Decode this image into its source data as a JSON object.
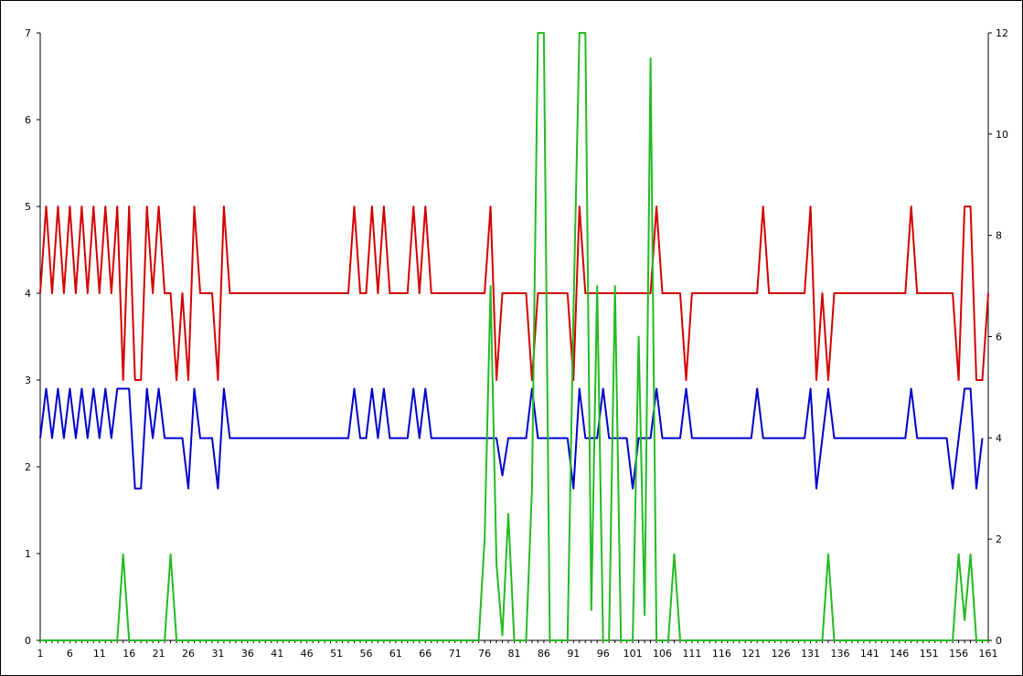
{
  "chart_data": {
    "type": "line",
    "title": "",
    "xlabel": "",
    "ylabel": "",
    "x_start": 1,
    "x_end": 161,
    "x_tick_labels": [
      "1",
      "6",
      "11",
      "16",
      "21",
      "26",
      "31",
      "36",
      "41",
      "46",
      "51",
      "56",
      "61",
      "66",
      "71",
      "76",
      "81",
      "86",
      "91",
      "96",
      "101",
      "106",
      "111",
      "116",
      "121",
      "126",
      "131",
      "136",
      "141",
      "146",
      "151",
      "156",
      "161"
    ],
    "ylim_left": [
      0,
      7
    ],
    "y_ticks_left": [
      "0",
      "1",
      "2",
      "3",
      "4",
      "5",
      "6",
      "7"
    ],
    "ylim_right": [
      0,
      12
    ],
    "y_ticks_right": [
      "0",
      "2",
      "4",
      "6",
      "8",
      "10",
      "12"
    ],
    "series": [
      {
        "color": "#d40000",
        "axis": "left",
        "segments": [
          [
            1,
            4
          ],
          [
            2,
            5
          ],
          [
            3,
            4
          ],
          [
            4,
            5
          ],
          [
            5,
            4
          ],
          [
            6,
            5
          ],
          [
            7,
            4
          ],
          [
            8,
            5
          ],
          [
            9,
            4
          ],
          [
            10,
            5
          ],
          [
            11,
            4
          ],
          [
            12,
            5
          ],
          [
            13,
            4
          ],
          [
            14,
            5
          ],
          [
            15,
            3
          ],
          [
            16,
            5
          ],
          [
            17,
            3
          ],
          [
            18,
            3
          ],
          [
            19,
            5
          ],
          [
            20,
            4
          ],
          [
            21,
            5
          ],
          [
            22,
            4
          ],
          [
            23,
            4
          ],
          [
            24,
            3
          ],
          [
            25,
            4
          ],
          [
            26,
            3
          ],
          [
            27,
            5
          ],
          [
            28,
            4
          ],
          [
            29,
            4
          ],
          [
            30,
            4
          ],
          [
            31,
            3
          ],
          [
            32,
            5
          ],
          [
            33,
            4
          ],
          [
            53,
            4
          ],
          [
            54,
            5
          ],
          [
            55,
            4
          ],
          [
            56,
            4
          ],
          [
            57,
            5
          ],
          [
            58,
            4
          ],
          [
            59,
            5
          ],
          [
            60,
            4
          ],
          [
            63,
            4
          ],
          [
            64,
            5
          ],
          [
            65,
            4
          ],
          [
            66,
            5
          ],
          [
            67,
            4
          ],
          [
            76,
            4
          ],
          [
            77,
            5
          ],
          [
            78,
            3
          ],
          [
            79,
            4
          ],
          [
            83,
            4
          ],
          [
            84,
            3
          ],
          [
            85,
            4
          ],
          [
            90,
            4
          ],
          [
            91,
            3
          ],
          [
            92,
            5
          ],
          [
            93,
            4
          ],
          [
            104,
            4
          ],
          [
            105,
            5
          ],
          [
            106,
            4
          ],
          [
            109,
            4
          ],
          [
            110,
            3
          ],
          [
            111,
            4
          ],
          [
            122,
            4
          ],
          [
            123,
            5
          ],
          [
            124,
            4
          ],
          [
            130,
            4
          ],
          [
            131,
            5
          ],
          [
            132,
            3
          ],
          [
            133,
            4
          ],
          [
            134,
            3
          ],
          [
            135,
            4
          ],
          [
            147,
            4
          ],
          [
            148,
            5
          ],
          [
            149,
            4
          ],
          [
            155,
            4
          ],
          [
            156,
            3
          ],
          [
            157,
            5
          ],
          [
            158,
            5
          ],
          [
            159,
            3
          ],
          [
            160,
            3
          ],
          [
            161,
            4
          ]
        ]
      },
      {
        "color": "#0000cc",
        "axis": "left",
        "segments": [
          [
            1,
            2.33
          ],
          [
            2,
            2.9
          ],
          [
            3,
            2.33
          ],
          [
            4,
            2.9
          ],
          [
            5,
            2.33
          ],
          [
            6,
            2.9
          ],
          [
            7,
            2.33
          ],
          [
            8,
            2.9
          ],
          [
            9,
            2.33
          ],
          [
            10,
            2.9
          ],
          [
            11,
            2.33
          ],
          [
            12,
            2.9
          ],
          [
            13,
            2.33
          ],
          [
            14,
            2.9
          ],
          [
            15,
            2.9
          ],
          [
            16,
            2.9
          ],
          [
            17,
            1.75
          ],
          [
            18,
            1.75
          ],
          [
            19,
            2.9
          ],
          [
            20,
            2.33
          ],
          [
            21,
            2.9
          ],
          [
            22,
            2.33
          ],
          [
            24,
            2.33
          ],
          [
            25,
            2.33
          ],
          [
            26,
            1.75
          ],
          [
            27,
            2.9
          ],
          [
            28,
            2.33
          ],
          [
            30,
            2.33
          ],
          [
            31,
            1.75
          ],
          [
            32,
            2.9
          ],
          [
            33,
            2.33
          ],
          [
            53,
            2.33
          ],
          [
            54,
            2.9
          ],
          [
            55,
            2.33
          ],
          [
            56,
            2.33
          ],
          [
            57,
            2.9
          ],
          [
            58,
            2.33
          ],
          [
            59,
            2.9
          ],
          [
            60,
            2.33
          ],
          [
            63,
            2.33
          ],
          [
            64,
            2.9
          ],
          [
            65,
            2.33
          ],
          [
            66,
            2.9
          ],
          [
            67,
            2.33
          ],
          [
            78,
            2.33
          ],
          [
            79,
            1.9
          ],
          [
            80,
            2.33
          ],
          [
            83,
            2.33
          ],
          [
            84,
            2.9
          ],
          [
            85,
            2.33
          ],
          [
            90,
            2.33
          ],
          [
            91,
            1.75
          ],
          [
            92,
            2.9
          ],
          [
            93,
            2.33
          ],
          [
            95,
            2.33
          ],
          [
            96,
            2.9
          ],
          [
            97,
            2.33
          ],
          [
            100,
            2.33
          ],
          [
            101,
            1.75
          ],
          [
            102,
            2.33
          ],
          [
            104,
            2.33
          ],
          [
            105,
            2.9
          ],
          [
            106,
            2.33
          ],
          [
            109,
            2.33
          ],
          [
            110,
            2.9
          ],
          [
            111,
            2.33
          ],
          [
            121,
            2.33
          ],
          [
            122,
            2.9
          ],
          [
            123,
            2.33
          ],
          [
            130,
            2.33
          ],
          [
            131,
            2.9
          ],
          [
            132,
            1.75
          ],
          [
            133,
            2.33
          ],
          [
            134,
            2.9
          ],
          [
            135,
            2.33
          ],
          [
            147,
            2.33
          ],
          [
            148,
            2.9
          ],
          [
            149,
            2.33
          ],
          [
            154,
            2.33
          ],
          [
            155,
            1.75
          ],
          [
            157,
            2.9
          ],
          [
            158,
            2.9
          ],
          [
            159,
            1.75
          ],
          [
            160,
            2.33
          ]
        ]
      },
      {
        "color": "#22bb22",
        "axis": "right",
        "segments": [
          [
            1,
            0
          ],
          [
            14,
            0
          ],
          [
            15,
            1.7
          ],
          [
            16,
            0
          ],
          [
            22,
            0
          ],
          [
            23,
            1.7
          ],
          [
            24,
            0
          ],
          [
            75,
            0
          ],
          [
            76,
            2
          ],
          [
            77,
            7
          ],
          [
            78,
            1.5
          ],
          [
            79,
            0.1
          ],
          [
            80,
            2.5
          ],
          [
            81,
            0
          ],
          [
            83,
            0
          ],
          [
            84,
            3
          ],
          [
            85,
            12
          ],
          [
            86,
            12
          ],
          [
            87,
            0
          ],
          [
            90,
            0
          ],
          [
            91,
            6.5
          ],
          [
            92,
            12
          ],
          [
            93,
            12
          ],
          [
            94,
            0.6
          ],
          [
            95,
            7
          ],
          [
            96,
            0
          ],
          [
            97,
            0
          ],
          [
            98,
            7
          ],
          [
            99,
            0
          ],
          [
            101,
            0
          ],
          [
            102,
            6
          ],
          [
            103,
            0.5
          ],
          [
            104,
            11.5
          ],
          [
            105,
            0
          ],
          [
            107,
            0
          ],
          [
            108,
            1.7
          ],
          [
            109,
            0
          ],
          [
            133,
            0
          ],
          [
            134,
            1.7
          ],
          [
            135,
            0
          ],
          [
            155,
            0
          ],
          [
            156,
            1.7
          ],
          [
            157,
            0.4
          ],
          [
            158,
            1.7
          ],
          [
            159,
            0
          ],
          [
            161,
            0
          ]
        ]
      }
    ]
  }
}
